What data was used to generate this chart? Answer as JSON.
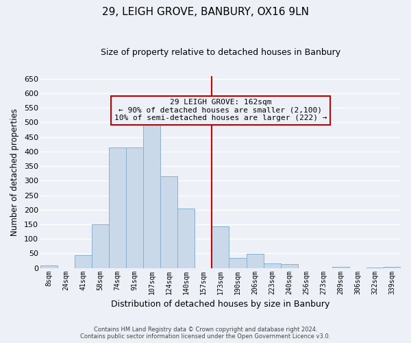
{
  "title": "29, LEIGH GROVE, BANBURY, OX16 9LN",
  "subtitle": "Size of property relative to detached houses in Banbury",
  "xlabel": "Distribution of detached houses by size in Banbury",
  "ylabel": "Number of detached properties",
  "footnote1": "Contains HM Land Registry data © Crown copyright and database right 2024.",
  "footnote2": "Contains public sector information licensed under the Open Government Licence v3.0.",
  "bar_labels": [
    "8sqm",
    "24sqm",
    "41sqm",
    "58sqm",
    "74sqm",
    "91sqm",
    "107sqm",
    "124sqm",
    "140sqm",
    "157sqm",
    "173sqm",
    "190sqm",
    "206sqm",
    "223sqm",
    "240sqm",
    "256sqm",
    "273sqm",
    "289sqm",
    "306sqm",
    "322sqm",
    "339sqm"
  ],
  "bar_values": [
    8,
    0,
    45,
    150,
    415,
    415,
    530,
    315,
    205,
    0,
    143,
    35,
    48,
    15,
    13,
    0,
    0,
    5,
    0,
    2,
    3
  ],
  "bar_color": "#c9d9ea",
  "bar_edgecolor": "#8ab0cc",
  "vline_color": "#cc0000",
  "annotation_title": "29 LEIGH GROVE: 162sqm",
  "annotation_line1": "← 90% of detached houses are smaller (2,100)",
  "annotation_line2": "10% of semi-detached houses are larger (222) →",
  "annotation_box_edgecolor": "#cc0000",
  "ylim": [
    0,
    660
  ],
  "yticks": [
    0,
    50,
    100,
    150,
    200,
    250,
    300,
    350,
    400,
    450,
    500,
    550,
    600,
    650
  ],
  "background_color": "#edf1f7",
  "grid_color": "#ffffff",
  "figsize": [
    6.0,
    5.0
  ],
  "dpi": 100
}
